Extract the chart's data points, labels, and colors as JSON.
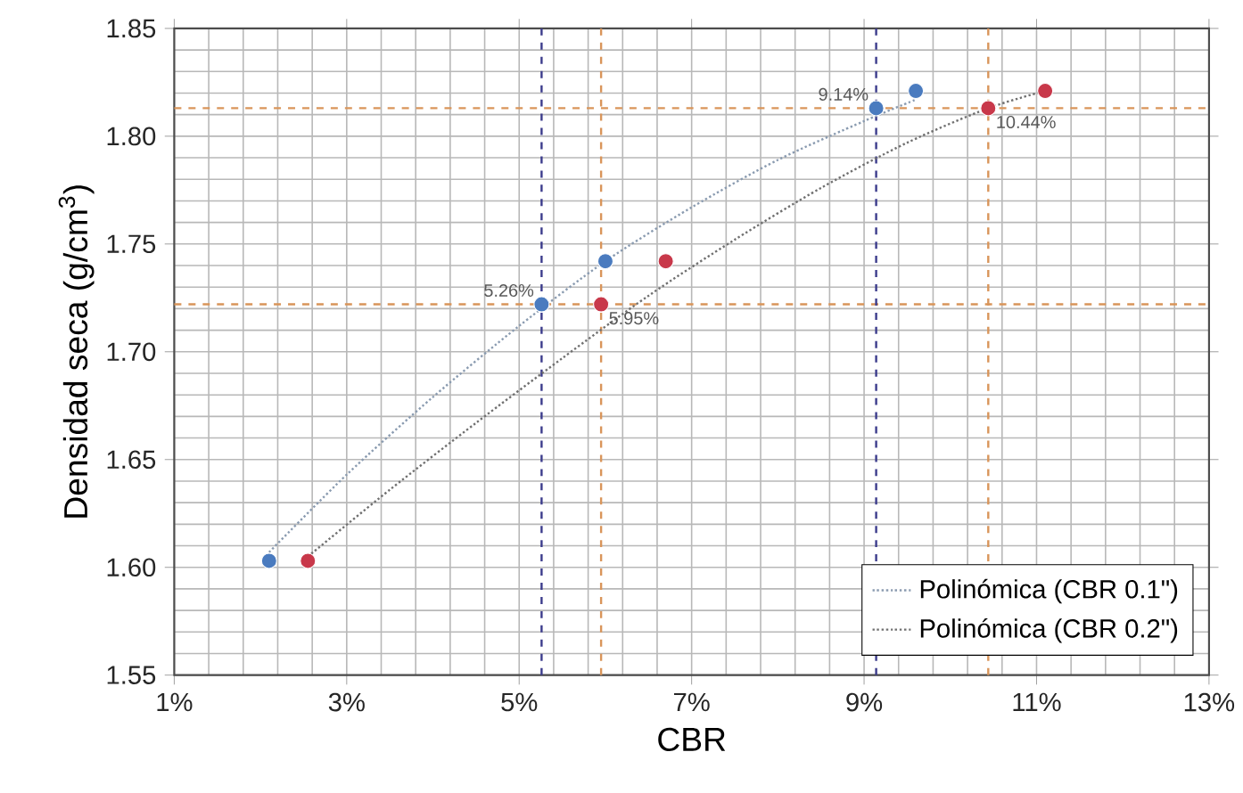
{
  "chart_data": {
    "type": "scatter",
    "xlabel": "CBR",
    "ylabel": "Densidad seca (g/cm$^{3}$)",
    "xlim": [
      1,
      13
    ],
    "ylim": [
      1.55,
      1.85
    ],
    "xticks": [
      {
        "value": 1,
        "label": "1%"
      },
      {
        "value": 3,
        "label": "3%"
      },
      {
        "value": 5,
        "label": "5%"
      },
      {
        "value": 7,
        "label": "7%"
      },
      {
        "value": 9,
        "label": "9%"
      },
      {
        "value": 11,
        "label": "11%"
      },
      {
        "value": 13,
        "label": "13%"
      }
    ],
    "yticks": [
      {
        "value": 1.55,
        "label": "1.55"
      },
      {
        "value": 1.6,
        "label": "1.60"
      },
      {
        "value": 1.65,
        "label": "1.65"
      },
      {
        "value": 1.7,
        "label": "1.70"
      },
      {
        "value": 1.75,
        "label": "1.75"
      },
      {
        "value": 1.8,
        "label": "1.80"
      },
      {
        "value": 1.85,
        "label": "1.85"
      }
    ],
    "grid": true,
    "legend": "bottom right",
    "marker": "circle",
    "series": [
      {
        "color": "#4a7bbf",
        "x": [
          2.1,
          5.26,
          6.0,
          9.14,
          9.6
        ],
        "values": [
          1.603,
          1.722,
          1.742,
          1.813,
          1.821
        ]
      },
      {
        "color": "#c8384a",
        "x": [
          2.55,
          5.95,
          6.7,
          10.44,
          11.1
        ],
        "values": [
          1.603,
          1.722,
          1.742,
          1.813,
          1.821
        ]
      },
      {
        "type": "line",
        "name": "Polinómica (CBR 0.1\")",
        "color": "#8a9bb0",
        "line_style": "dotted",
        "marker": "none",
        "x": [
          2.1,
          3,
          4,
          5,
          6,
          7,
          8,
          9,
          9.6
        ],
        "values": [
          1.607,
          1.643,
          1.679,
          1.712,
          1.742,
          1.767,
          1.789,
          1.807,
          1.817
        ]
      },
      {
        "type": "line",
        "name": "Polinómica (CBR 0.2\")",
        "color": "#707070",
        "line_style": "dotted",
        "marker": "none",
        "x": [
          2.55,
          3.5,
          4.5,
          5.5,
          6.5,
          7.5,
          8.5,
          9.5,
          10.44,
          11.1
        ],
        "values": [
          1.605,
          1.636,
          1.667,
          1.697,
          1.726,
          1.752,
          1.776,
          1.797,
          1.813,
          1.821
        ]
      }
    ],
    "ref_lines": [
      {
        "axis": "y",
        "value": 1.813,
        "color": "#d9955a",
        "line_style": "dashed"
      },
      {
        "axis": "y",
        "value": 1.722,
        "color": "#d9955a",
        "line_style": "dashed"
      },
      {
        "axis": "x",
        "value": 5.26,
        "color": "#3c3c8c",
        "line_style": "dashed"
      },
      {
        "axis": "x",
        "value": 5.95,
        "color": "#d9955a",
        "line_style": "dashed"
      },
      {
        "axis": "x",
        "value": 9.14,
        "color": "#3c3c8c",
        "line_style": "dashed"
      },
      {
        "axis": "x",
        "value": 10.44,
        "color": "#d9955a",
        "line_style": "dashed"
      }
    ],
    "annotations": [
      {
        "text": "5.26%",
        "x": 5.26,
        "y": 1.722
      },
      {
        "text": "5.95%",
        "x": 5.95,
        "y": 1.722
      },
      {
        "text": "9.14%",
        "x": 9.14,
        "y": 1.813
      },
      {
        "text": "10.44%",
        "x": 10.44,
        "y": 1.813
      }
    ]
  }
}
